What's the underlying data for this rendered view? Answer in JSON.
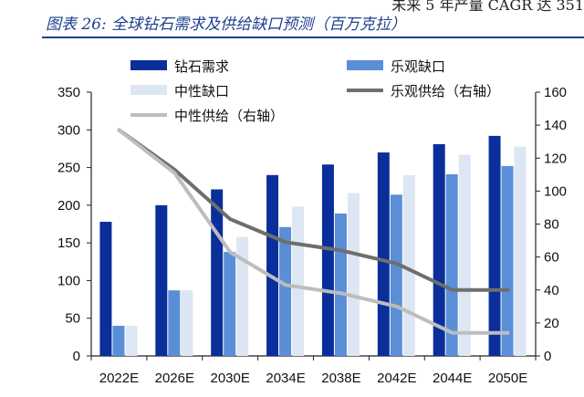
{
  "header": {
    "title": "图表 26:  全球钻石需求及供给缺口预测（百万克拉）",
    "cutoff_text": "未来 5 年产量 CAGR 达 351"
  },
  "chart_data": {
    "type": "bar",
    "categories": [
      "2022E",
      "2026E",
      "2030E",
      "2034E",
      "2038E",
      "2042E",
      "2044E",
      "2050E"
    ],
    "ylim": [
      0,
      350
    ],
    "y2lim": [
      0,
      160
    ],
    "yticks": [
      "0",
      "50",
      "100",
      "150",
      "200",
      "250",
      "300",
      "350"
    ],
    "y2ticks": [
      "0",
      "20",
      "40",
      "60",
      "80",
      "100",
      "120",
      "140",
      "160"
    ],
    "series": [
      {
        "name": "钻石需求",
        "kind": "bar",
        "color": "#0a2f9b",
        "values": [
          178,
          200,
          221,
          240,
          254,
          270,
          281,
          292
        ]
      },
      {
        "name": "乐观缺口",
        "kind": "bar",
        "color": "#5a8fd8",
        "values": [
          40,
          87,
          138,
          171,
          189,
          214,
          241,
          252
        ]
      },
      {
        "name": "中性缺口",
        "kind": "bar",
        "color": "#dde6f3",
        "values": [
          40,
          87,
          158,
          198,
          216,
          240,
          267,
          278
        ]
      },
      {
        "name": "乐观供给（右轴）",
        "kind": "line",
        "axis": "right",
        "color": "#6e6e6e",
        "values": [
          137,
          113,
          83,
          69,
          64,
          56,
          40,
          40
        ]
      },
      {
        "name": "中性供给（右轴）",
        "kind": "line",
        "axis": "right",
        "color": "#bdbdbd",
        "values": [
          137,
          111,
          63,
          43,
          38,
          30,
          14,
          14
        ]
      }
    ],
    "legend_position": "top"
  }
}
